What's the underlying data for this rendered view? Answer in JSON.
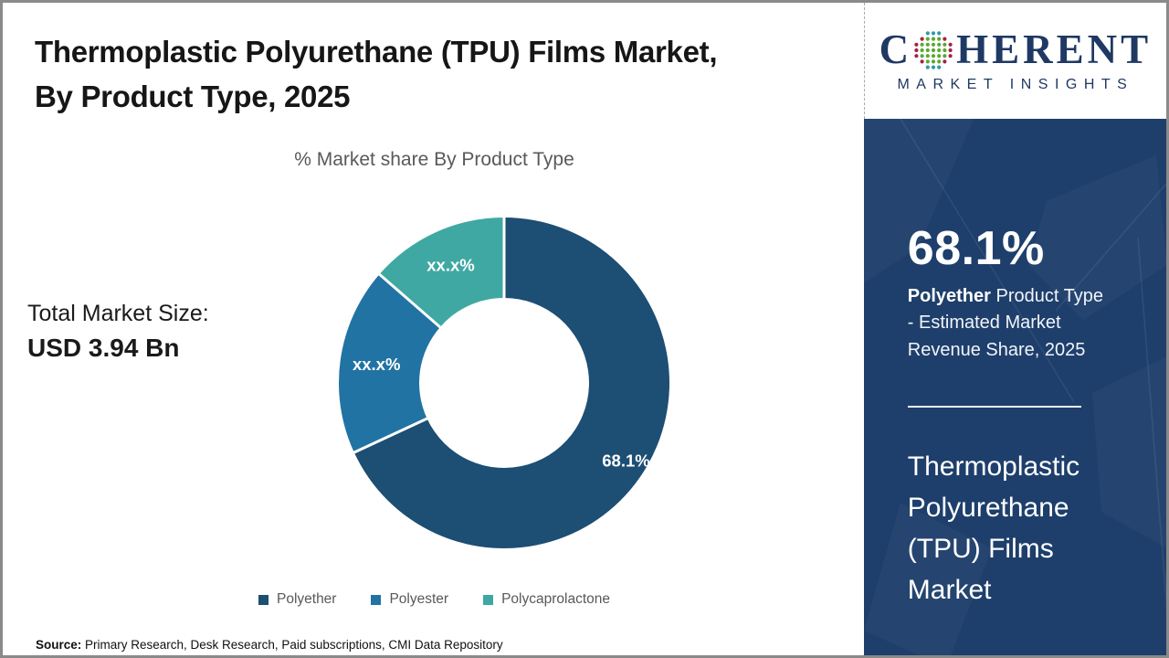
{
  "header": {
    "title_line1": "Thermoplastic Polyurethane (TPU) Films Market,",
    "title_line2": "By Product Type, 2025"
  },
  "subtitle": "% Market share By Product Type",
  "total_market": {
    "label": "Total Market Size:",
    "value": "USD 3.94 Bn"
  },
  "chart_data": {
    "type": "pie",
    "subtype": "donut",
    "title": "% Market share By Product Type",
    "start_angle_deg": 0,
    "direction": "clockwise",
    "legend_position": "bottom",
    "segments": [
      {
        "label": "Polyether",
        "display": "68.1%",
        "value_pct": 68.1,
        "estimated": false,
        "color": "#1d4e74"
      },
      {
        "label": "Polyester",
        "display": "xx.x%",
        "value_pct": 18.3,
        "estimated": true,
        "color": "#2173a3"
      },
      {
        "label": "Polycaprolactone",
        "display": "xx.x%",
        "value_pct": 13.6,
        "estimated": true,
        "color": "#3fa8a2"
      }
    ]
  },
  "source": {
    "label": "Source:",
    "text": " Primary Research, Desk Research, Paid subscriptions, CMI Data Repository"
  },
  "logo": {
    "brand_c": "C",
    "brand_rest": "HERENT",
    "tagline": "MARKET INSIGHTS"
  },
  "sidebar": {
    "stat_value": "68.1%",
    "stat_bold": "Polyether",
    "stat_rest": " Product Type - Estimated Market Revenue Share, 2025",
    "market_name": "Thermoplastic Polyurethane (TPU) Films Market"
  },
  "colors": {
    "navy_panel": "#1e3f6b",
    "logo_navy": "#1f3864",
    "globe_green": "#5ba832",
    "globe_teal": "#2f9ba8",
    "globe_crimson": "#a62047",
    "subtitle_gray": "#595959",
    "separator_white": "#ffffff"
  }
}
